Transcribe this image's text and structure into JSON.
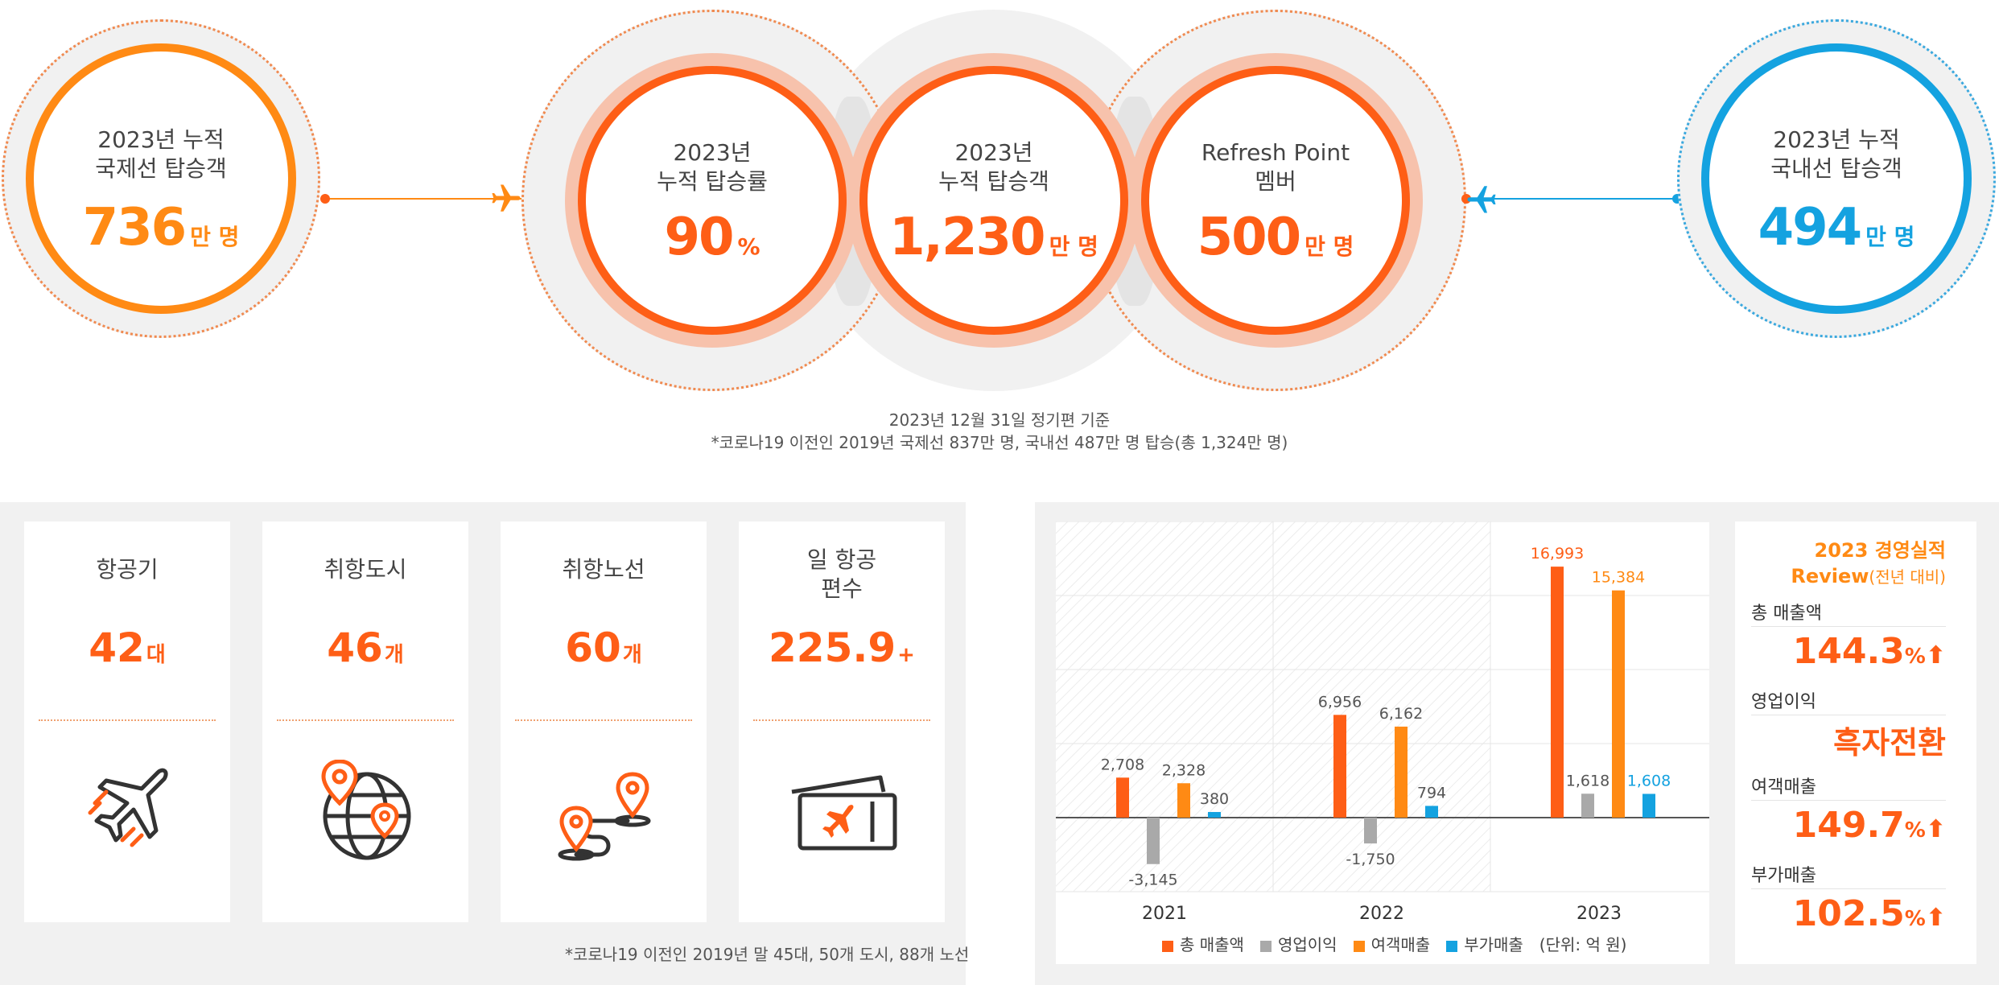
{
  "top": {
    "international": {
      "label": "2023년 누적\n국제선 탑승객",
      "value": "736",
      "unit": "만 명"
    },
    "load_factor": {
      "label": "2023년\n누적 탑승률",
      "value": "90",
      "unit": "%"
    },
    "total_passengers": {
      "label": "2023년\n누적 탑승객",
      "value": "1,230",
      "unit": "만 명"
    },
    "refresh_point": {
      "label": "Refresh Point\n멤버",
      "value": "500",
      "unit": "만 명"
    },
    "domestic": {
      "label": "2023년 누적\n국내선 탑승객",
      "value": "494",
      "unit": "만 명"
    },
    "note_line1": "2023년 12월 31일 정기편 기준",
    "note_line2": "*코로나19 이전인 2019년 국제선 837만 명, 국내선 487만 명 탑승(총 1,324만 명)"
  },
  "colors": {
    "brand": "#fe5e16",
    "orange": "#ff8a14",
    "blue": "#14a2e0",
    "gray": "#a9a9a9"
  },
  "fleet": {
    "cards": [
      {
        "title": "항공기",
        "value": "42",
        "unit": "대",
        "icon": "airplane-icon"
      },
      {
        "title": "취항도시",
        "value": "46",
        "unit": "개",
        "icon": "globe-pin-icon"
      },
      {
        "title": "취항노선",
        "value": "60",
        "unit": "개",
        "icon": "route-icon"
      },
      {
        "title": "일 항공\n편수",
        "value": "225.9",
        "unit": "+",
        "icon": "ticket-icon"
      }
    ],
    "footnote": "*코로나19 이전인 2019년 말 45대, 50개 도시, 88개 노선"
  },
  "chart_data": {
    "type": "bar",
    "categories": [
      "2021",
      "2022",
      "2023"
    ],
    "series": [
      {
        "name": "총 매출액",
        "color": "#fe5e16",
        "values": [
          2708,
          6956,
          16993
        ],
        "labels": [
          "2,708",
          "6,956",
          "16,993"
        ]
      },
      {
        "name": "영업이익",
        "color": "#a9a9a9",
        "values": [
          -3145,
          -1750,
          1618
        ],
        "labels": [
          "-3,145",
          "-1,750",
          "1,618"
        ]
      },
      {
        "name": "여객매출",
        "color": "#ff8a14",
        "values": [
          2328,
          6162,
          15384
        ],
        "labels": [
          "2,328",
          "6,162",
          "15,384"
        ]
      },
      {
        "name": "부가매출",
        "color": "#14a2e0",
        "values": [
          380,
          794,
          1608
        ],
        "labels": [
          "380",
          "794",
          "1,608"
        ]
      }
    ],
    "unit_label": "(단위: 억 원)",
    "grid": true,
    "legend": "bottom"
  },
  "review": {
    "title": "2023 경영실적",
    "title2": "Review",
    "title_note": "(전년 대비)",
    "items": [
      {
        "label": "총 매출액",
        "value": "144.3",
        "unit": "%"
      },
      {
        "label": "영업이익",
        "value": "흑자전환",
        "unit": ""
      },
      {
        "label": "여객매출",
        "value": "149.7",
        "unit": "%"
      },
      {
        "label": "부가매출",
        "value": "102.5",
        "unit": "%"
      }
    ]
  }
}
